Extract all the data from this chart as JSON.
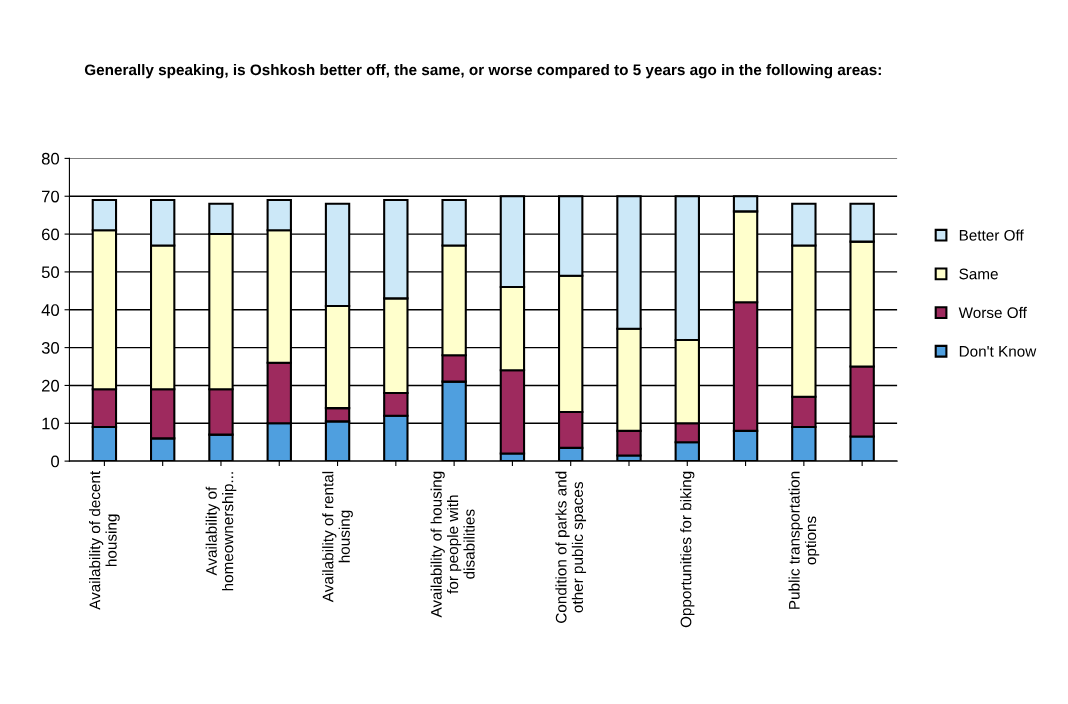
{
  "chart_data": {
    "type": "bar",
    "stacked": true,
    "title": "Generally speaking, is Oshkosh better off, the same, or worse compared to 5 years ago in the following areas:",
    "categories": [
      "Availability of decent housing",
      null,
      "Availability of homeownership...",
      null,
      "Availability of rental housing",
      null,
      "Availability of housing for people with disabilities",
      null,
      "Condition of parks and other public spaces",
      null,
      "Opportunities for biking",
      null,
      "Public transportation options",
      null
    ],
    "series": [
      {
        "name": "Don't Know",
        "color": "#4f9fdf",
        "values": [
          9,
          6,
          7,
          10,
          10.5,
          12,
          21,
          2,
          3.5,
          1.5,
          5,
          8,
          9,
          6.5
        ]
      },
      {
        "name": "Worse Off",
        "color": "#9e2a5e",
        "values": [
          10,
          13,
          12,
          16,
          3.5,
          6,
          7,
          22,
          9.5,
          6.5,
          5,
          34,
          8,
          18.5
        ]
      },
      {
        "name": "Same",
        "color": "#ffffcc",
        "values": [
          42,
          38,
          41,
          35,
          27,
          25,
          29,
          22,
          36,
          27,
          22,
          24,
          40,
          33
        ]
      },
      {
        "name": "Better Off",
        "color": "#cce8f8",
        "values": [
          8,
          12,
          8,
          8,
          27,
          26,
          12,
          24,
          21,
          35,
          38,
          4,
          11,
          10
        ]
      }
    ],
    "ylim": [
      0,
      80
    ],
    "yticks": [
      0,
      10,
      20,
      30,
      40,
      50,
      60,
      70,
      80
    ],
    "grid": "y",
    "legend": "right"
  }
}
